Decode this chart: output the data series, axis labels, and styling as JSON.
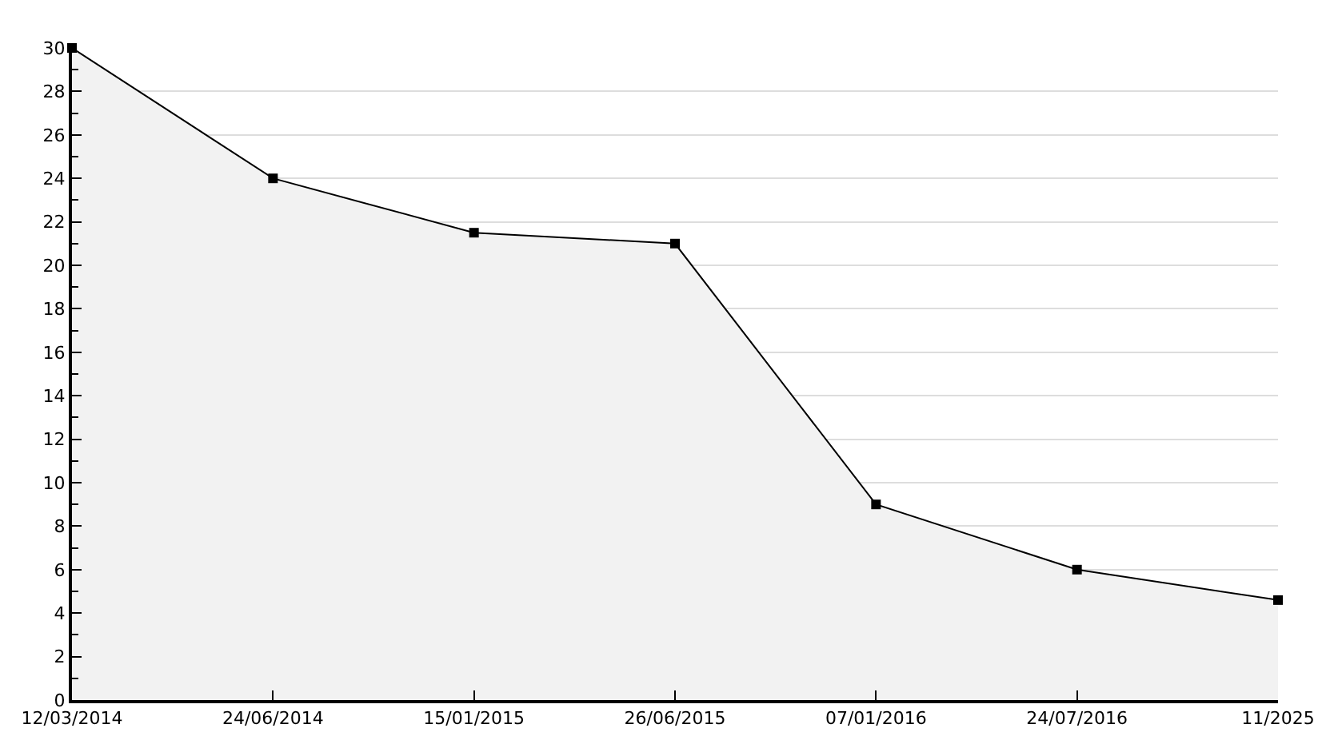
{
  "chart_data": {
    "type": "area",
    "categories": [
      "12/03/2014",
      "24/06/2014",
      "15/01/2015",
      "26/06/2015",
      "07/01/2016",
      "24/07/2016",
      "11/2025"
    ],
    "series": [
      {
        "color": "#000000",
        "values": [
          30,
          24,
          21.5,
          21,
          9,
          6,
          4.6
        ]
      }
    ],
    "ylim": [
      0,
      30
    ],
    "yticks": [
      0,
      2,
      4,
      6,
      8,
      10,
      12,
      14,
      16,
      18,
      20,
      22,
      24,
      26,
      28,
      30
    ],
    "grid": "y",
    "legend": false,
    "marker": "square",
    "line_style": "solid"
  }
}
